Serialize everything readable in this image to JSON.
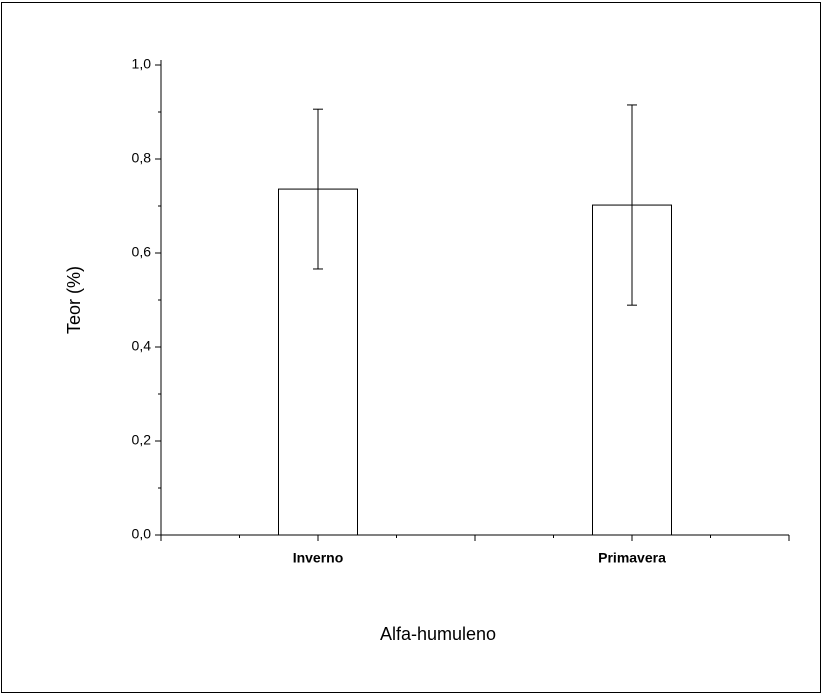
{
  "chart_data": {
    "type": "bar",
    "x_label": "Alfa-humuleno",
    "y_label": "Teor (%)",
    "categories": [
      "Inverno",
      "Primavera"
    ],
    "values": [
      0.736,
      0.702
    ],
    "errors": [
      0.17,
      0.213
    ],
    "color": "#ffffff",
    "ylim": [
      0,
      1.0
    ],
    "yticks": [
      {
        "value": 0,
        "label": "0,0"
      },
      {
        "value": 0.2,
        "label": "0,2"
      },
      {
        "value": 0.4,
        "label": "0,4"
      },
      {
        "value": 0.6,
        "label": "0,6"
      },
      {
        "value": 0.8,
        "label": "0,8"
      },
      {
        "value": 1.0,
        "label": "1,0"
      }
    ],
    "yticks_minor": [
      0.1,
      0.3,
      0.5,
      0.7,
      0.9
    ],
    "grid": false
  }
}
